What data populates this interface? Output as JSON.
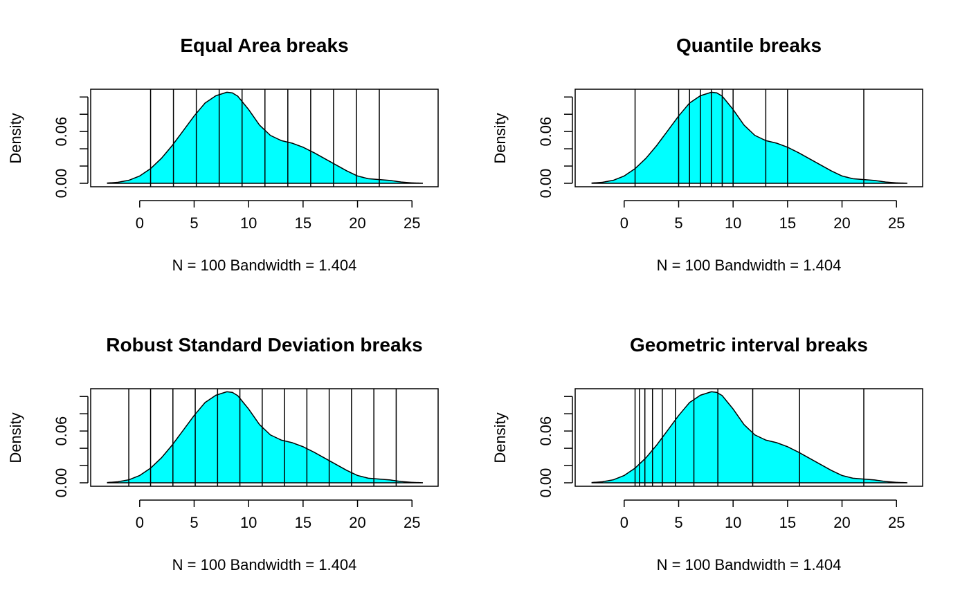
{
  "figure": {
    "background": "#ffffff",
    "fill_color": "#00ffff",
    "line_color": "#000000"
  },
  "density": {
    "x": [
      -3,
      -2,
      -1,
      0,
      1,
      2,
      3,
      4,
      5,
      6,
      7,
      8,
      8.5,
      9,
      10,
      11,
      12,
      13,
      14,
      15,
      16,
      17,
      18,
      19,
      20,
      21,
      22,
      23,
      24,
      25,
      26
    ],
    "y": [
      0.0003,
      0.0012,
      0.0035,
      0.0085,
      0.017,
      0.029,
      0.044,
      0.061,
      0.078,
      0.093,
      0.1015,
      0.1055,
      0.1048,
      0.101,
      0.0855,
      0.0675,
      0.0555,
      0.0495,
      0.0465,
      0.0418,
      0.0355,
      0.0285,
      0.0215,
      0.0145,
      0.0085,
      0.0053,
      0.0043,
      0.0033,
      0.0015,
      0.0005,
      0.0001
    ]
  },
  "chart_data": [
    {
      "type": "area",
      "title": "Equal Area breaks",
      "xlabel": "N = 100   Bandwidth = 1.404",
      "ylabel": "Density",
      "xlim": [
        -4.5,
        27.4
      ],
      "ylim": [
        -0.004,
        0.109
      ],
      "xticks": [
        0,
        5,
        10,
        15,
        20,
        25
      ],
      "xtick_labels": [
        "0",
        "5",
        "10",
        "15",
        "20",
        "25"
      ],
      "yticks": [
        0,
        0.02,
        0.04,
        0.06,
        0.08,
        0.1
      ],
      "ytick_labels": [
        "0.00",
        "",
        "",
        "0.06",
        "",
        ""
      ],
      "breaks": [
        1.0,
        3.1,
        5.2,
        7.3,
        9.4,
        11.5,
        13.6,
        15.7,
        17.8,
        19.9,
        22.0
      ]
    },
    {
      "type": "area",
      "title": "Quantile breaks",
      "xlabel": "N = 100   Bandwidth = 1.404",
      "ylabel": "Density",
      "xlim": [
        -4.5,
        27.4
      ],
      "ylim": [
        -0.004,
        0.109
      ],
      "xticks": [
        0,
        5,
        10,
        15,
        20,
        25
      ],
      "xtick_labels": [
        "0",
        "5",
        "10",
        "15",
        "20",
        "25"
      ],
      "yticks": [
        0,
        0.02,
        0.04,
        0.06,
        0.08,
        0.1
      ],
      "ytick_labels": [
        "0.00",
        "",
        "",
        "0.06",
        "",
        ""
      ],
      "breaks": [
        1.0,
        5.0,
        6.0,
        7.0,
        8.0,
        9.0,
        10.0,
        13.0,
        15.0,
        22.0
      ]
    },
    {
      "type": "area",
      "title": "Robust Standard Deviation breaks",
      "xlabel": "N = 100   Bandwidth = 1.404",
      "ylabel": "Density",
      "xlim": [
        -4.5,
        27.4
      ],
      "ylim": [
        -0.004,
        0.109
      ],
      "xticks": [
        0,
        5,
        10,
        15,
        20,
        25
      ],
      "xtick_labels": [
        "0",
        "5",
        "10",
        "15",
        "20",
        "25"
      ],
      "yticks": [
        0,
        0.02,
        0.04,
        0.06,
        0.08,
        0.1
      ],
      "ytick_labels": [
        "0.00",
        "",
        "",
        "0.06",
        "",
        ""
      ],
      "breaks": [
        -1.0,
        1.0,
        3.05,
        5.1,
        7.15,
        9.2,
        11.25,
        13.3,
        15.35,
        17.4,
        19.45,
        21.5,
        23.55
      ]
    },
    {
      "type": "area",
      "title": "Geometric interval breaks",
      "xlabel": "N = 100   Bandwidth = 1.404",
      "ylabel": "Density",
      "xlim": [
        -4.5,
        27.4
      ],
      "ylim": [
        -0.004,
        0.109
      ],
      "xticks": [
        0,
        5,
        10,
        15,
        20,
        25
      ],
      "xtick_labels": [
        "0",
        "5",
        "10",
        "15",
        "20",
        "25"
      ],
      "yticks": [
        0,
        0.02,
        0.04,
        0.06,
        0.08,
        0.1
      ],
      "ytick_labels": [
        "0.00",
        "",
        "",
        "0.06",
        "",
        ""
      ],
      "breaks": [
        1.0,
        1.4,
        1.9,
        2.6,
        3.5,
        4.7,
        6.4,
        8.6,
        11.8,
        16.1,
        22.0
      ]
    }
  ]
}
